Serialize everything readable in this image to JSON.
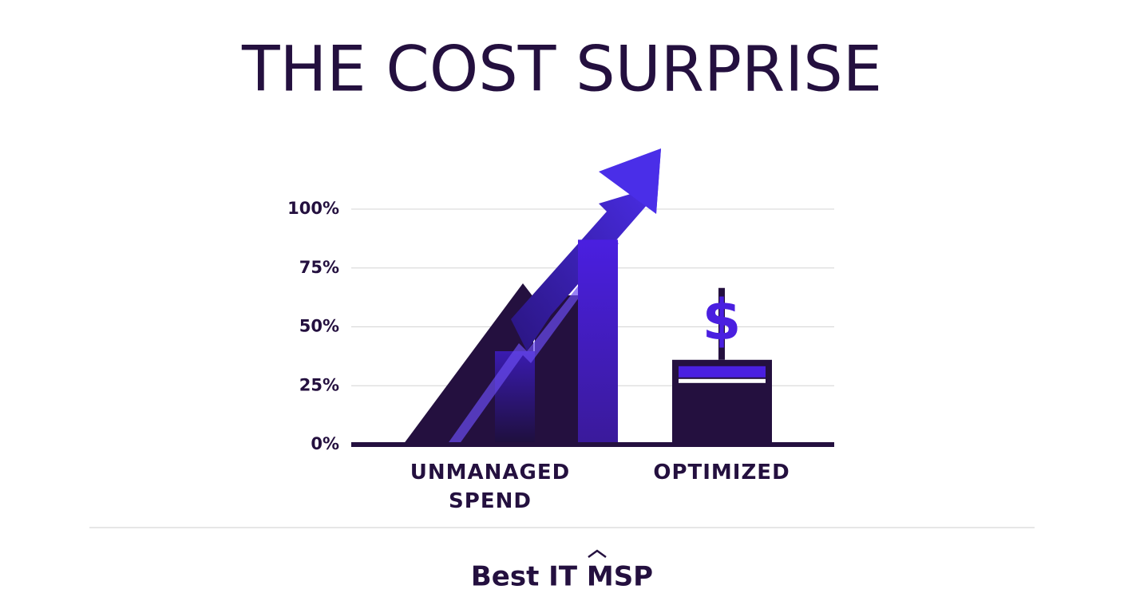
{
  "chart_data": {
    "type": "bar",
    "title": "THE COST SURPRISE",
    "categories": [
      "UNMANAGED SPEND",
      "OPTIMIZED"
    ],
    "values": [
      87,
      36
    ],
    "colors": [
      "#4a1fe0",
      "#24103f"
    ],
    "ylim": [
      0,
      100
    ],
    "yticks": [
      {
        "value": 0,
        "label": "0%"
      },
      {
        "value": 25,
        "label": "25%"
      },
      {
        "value": 50,
        "label": "50%"
      },
      {
        "value": 75,
        "label": "75%"
      },
      {
        "value": 100,
        "label": "100%"
      }
    ],
    "grid": true
  },
  "footer": {
    "brand": "Best IT MSP"
  }
}
